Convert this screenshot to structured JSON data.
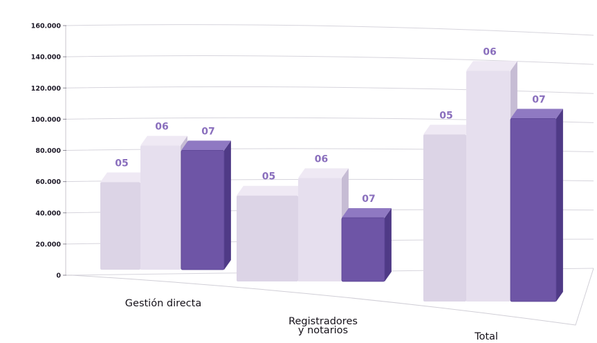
{
  "chart_data": {
    "type": "bar",
    "categories": [
      "Gestión directa",
      "Registradores\ny notarios",
      "Total"
    ],
    "series": [
      {
        "name": "05",
        "values": [
          55000,
          54000,
          105000
        ]
      },
      {
        "name": "06",
        "values": [
          78000,
          65000,
          145000
        ]
      },
      {
        "name": "07",
        "values": [
          75000,
          40000,
          115000
        ]
      }
    ],
    "ylim": [
      0,
      160000
    ],
    "yticks": [
      "0",
      "20.000",
      "40.000",
      "60.000",
      "80.000",
      "100.000",
      "120.000",
      "140.000",
      "160.000"
    ],
    "grid": true,
    "legend": "none",
    "colors": {
      "05": "#dcd4e6",
      "06": "#e6dfee",
      "07": "#6e55a6",
      "label": "#8a6fbd"
    }
  }
}
